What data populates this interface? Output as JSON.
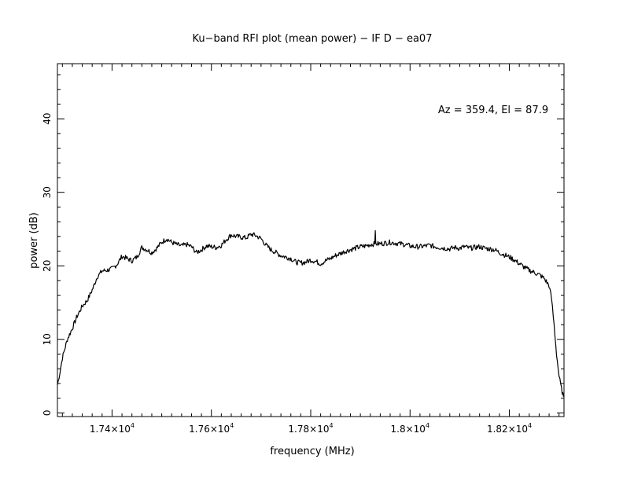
{
  "chart_data": {
    "type": "line",
    "title": "Ku−band RFI plot (mean power) − IF D − ea07",
    "xlabel": "frequency (MHz)",
    "ylabel": "power (dB)",
    "annotation": "Az = 359.4, El = 87.9",
    "xlim": [
      17290,
      18310
    ],
    "ylim": [
      -0.5,
      47.5
    ],
    "x_ticks": [
      {
        "value": 17400,
        "mant": "1.74×10",
        "exp": "4"
      },
      {
        "value": 17600,
        "mant": "1.76×10",
        "exp": "4"
      },
      {
        "value": 17800,
        "mant": "1.78×10",
        "exp": "4"
      },
      {
        "value": 18000,
        "mant": "1.8×10",
        "exp": "4"
      },
      {
        "value": 18200,
        "mant": "1.82×10",
        "exp": "4"
      }
    ],
    "y_ticks": [
      {
        "value": 0,
        "label": "0"
      },
      {
        "value": 10,
        "label": "10"
      },
      {
        "value": 20,
        "label": "20"
      },
      {
        "value": 30,
        "label": "30"
      },
      {
        "value": 40,
        "label": "40"
      }
    ],
    "grid": false,
    "color": "#000000",
    "series": [
      {
        "x": [
          17290,
          17295,
          17300,
          17310,
          17320,
          17330,
          17340,
          17350,
          17360,
          17370,
          17380,
          17390,
          17400,
          17410,
          17420,
          17430,
          17440,
          17450,
          17460,
          17470,
          17480,
          17490,
          17500,
          17510,
          17520,
          17530,
          17540,
          17550,
          17560,
          17570,
          17580,
          17590,
          17600,
          17610,
          17620,
          17630,
          17640,
          17650,
          17660,
          17670,
          17680,
          17690,
          17700,
          17710,
          17720,
          17730,
          17740,
          17750,
          17760,
          17770,
          17780,
          17790,
          17800,
          17810,
          17820,
          17830,
          17840,
          17850,
          17860,
          17870,
          17880,
          17890,
          17900,
          17910,
          17920,
          17929,
          17930,
          17931,
          17940,
          17950,
          17960,
          17970,
          17980,
          17990,
          18000,
          18010,
          18020,
          18030,
          18040,
          18050,
          18060,
          18070,
          18080,
          18090,
          18100,
          18110,
          18120,
          18130,
          18140,
          18150,
          18160,
          18170,
          18180,
          18190,
          18200,
          18210,
          18220,
          18230,
          18240,
          18250,
          18260,
          18270,
          18280,
          18285,
          18290,
          18295,
          18300,
          18305,
          18309
        ],
        "y": [
          3.8,
          5.5,
          7.5,
          10.0,
          11.5,
          13.2,
          14.5,
          15.3,
          16.7,
          18.5,
          19.3,
          19.4,
          19.6,
          20.2,
          21.3,
          21.0,
          20.7,
          21.2,
          22.5,
          22.2,
          21.8,
          22.4,
          23.2,
          23.7,
          23.2,
          22.9,
          22.7,
          22.9,
          22.6,
          21.8,
          22.2,
          22.7,
          22.6,
          22.5,
          22.8,
          23.6,
          24.2,
          24.0,
          23.9,
          23.8,
          24.3,
          24.1,
          23.7,
          22.8,
          22.2,
          21.8,
          21.4,
          21.2,
          21.0,
          20.5,
          20.4,
          20.5,
          20.8,
          20.6,
          20.3,
          20.7,
          21.0,
          21.4,
          21.7,
          22.0,
          22.2,
          22.4,
          22.6,
          22.7,
          22.9,
          23.0,
          24.8,
          23.0,
          23.0,
          23.1,
          23.2,
          23.1,
          23.0,
          22.9,
          22.7,
          22.6,
          22.6,
          22.7,
          22.8,
          22.6,
          22.5,
          22.4,
          22.3,
          22.5,
          22.4,
          22.6,
          22.4,
          22.5,
          22.6,
          22.4,
          22.3,
          22.2,
          21.8,
          21.5,
          21.2,
          20.8,
          20.3,
          19.8,
          19.4,
          19.1,
          18.8,
          18.3,
          17.3,
          15.5,
          12.0,
          8.0,
          5.0,
          3.2,
          2.2
        ]
      }
    ]
  }
}
